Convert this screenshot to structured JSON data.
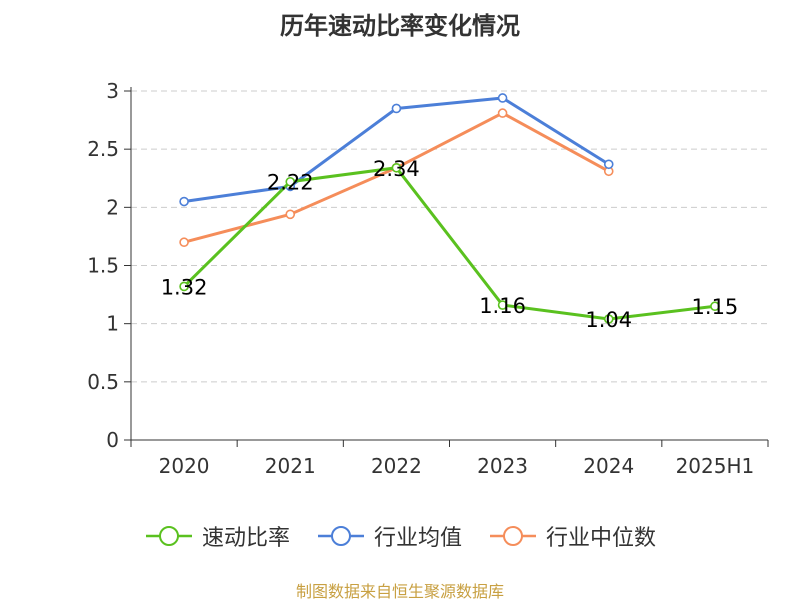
{
  "chart_data": {
    "type": "line",
    "title": "历年速动比率变化情况",
    "categories": [
      "2020",
      "2021",
      "2022",
      "2023",
      "2024",
      "2025H1"
    ],
    "ylim": [
      0,
      3
    ],
    "yticks": [
      "0",
      "0.5",
      "1",
      "1.5",
      "2",
      "2.5",
      "3"
    ],
    "grid": true,
    "legend_position": "bottom",
    "series": [
      {
        "name": "速动比率",
        "color": "#5ac11f",
        "values": [
          1.32,
          2.22,
          2.34,
          1.16,
          1.04,
          1.15
        ],
        "labels": [
          "1.32",
          "2.22",
          "2.34",
          "1.16",
          "1.04",
          "1.15"
        ]
      },
      {
        "name": "行业均值",
        "color": "#4c7fd8",
        "values": [
          2.05,
          2.18,
          2.85,
          2.94,
          2.37,
          null
        ]
      },
      {
        "name": "行业中位数",
        "color": "#f58d5a",
        "values": [
          1.7,
          1.94,
          2.34,
          2.81,
          2.31,
          null
        ]
      }
    ]
  },
  "source": "制图数据来自恒生聚源数据库"
}
